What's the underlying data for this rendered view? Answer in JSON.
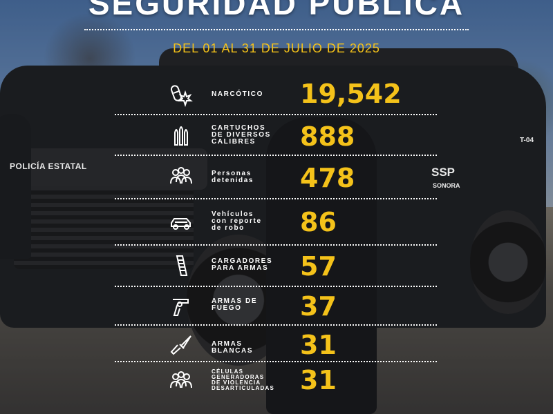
{
  "header": {
    "title": "SEGURIDAD PÚBLICA",
    "date_range": "DEL 01 AL 31 DE JULIO DE 2025"
  },
  "photo": {
    "vehicle_markings": {
      "police": "POLICÍA ESTATAL",
      "agency": "SSP",
      "state": "SONORA",
      "unit": "T-04"
    }
  },
  "colors": {
    "accent": "#f4c21a",
    "text": "#ffffff"
  },
  "stats": [
    {
      "icon": "drugs-icon",
      "label_lines": [
        "NARCÓTICO"
      ],
      "value": "19,542"
    },
    {
      "icon": "cartridges-icon",
      "label_lines": [
        "CARTUCHOS",
        "DE DIVERSOS",
        "CALIBRES"
      ],
      "value": "888"
    },
    {
      "icon": "people-icon",
      "label_lines": [
        "Personas",
        "detenidas"
      ],
      "value": "478"
    },
    {
      "icon": "car-icon",
      "label_lines": [
        "Vehículos",
        "con reporte",
        "de robo"
      ],
      "value": "86"
    },
    {
      "icon": "magazine-icon",
      "label_lines": [
        "CARGADORES",
        "PARA ARMAS"
      ],
      "value": "57"
    },
    {
      "icon": "revolver-icon",
      "label_lines": [
        "ARMAS DE",
        "FUEGO"
      ],
      "value": "37"
    },
    {
      "icon": "knife-icon",
      "label_lines": [
        "ARMAS",
        "BLANCAS"
      ],
      "value": "31"
    },
    {
      "icon": "group-icon",
      "label_lines": [
        "CÉLULAS",
        "GENERADORAS",
        "DE VIOLENCIA",
        "DESARTICULADAS"
      ],
      "value": "31"
    }
  ]
}
